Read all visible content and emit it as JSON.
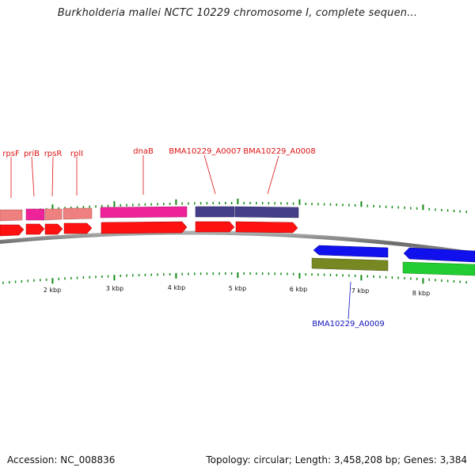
{
  "title": "Burkholderia mallei NCTC 10229 chromosome I, complete sequen...",
  "footer": {
    "accession_label": "Accession: NC_008836",
    "summary_label": "Topology: circular; Length: 3,458,208 bp; Genes: 3,384"
  },
  "scale": {
    "unit": "kbp",
    "labels": [
      "2 kbp",
      "3 kbp",
      "4 kbp",
      "5 kbp",
      "6 kbp",
      "7 kbp",
      "8 kbp"
    ]
  },
  "genes_top_labeled": [
    {
      "name": "rpsF"
    },
    {
      "name": "priB"
    },
    {
      "name": "rpsR"
    },
    {
      "name": "rplI"
    },
    {
      "name": "dnaB"
    },
    {
      "name": "BMA10229_A0007"
    },
    {
      "name": "BMA10229_A0008"
    }
  ],
  "genes_bottom_labeled": [
    {
      "name": "BMA10229_A0009"
    }
  ],
  "colors": {
    "label_top": "#dd1111",
    "label_bottom": "#1111bb",
    "tick": "#118811",
    "backbone": "#777777",
    "feature_red": "#ff1111",
    "feature_pink": "#ee2299",
    "feature_salmon": "#ee8080",
    "feature_navy": "#443f88",
    "feature_blue": "#1111ee",
    "feature_olive": "#778822",
    "feature_green": "#22cc33"
  }
}
